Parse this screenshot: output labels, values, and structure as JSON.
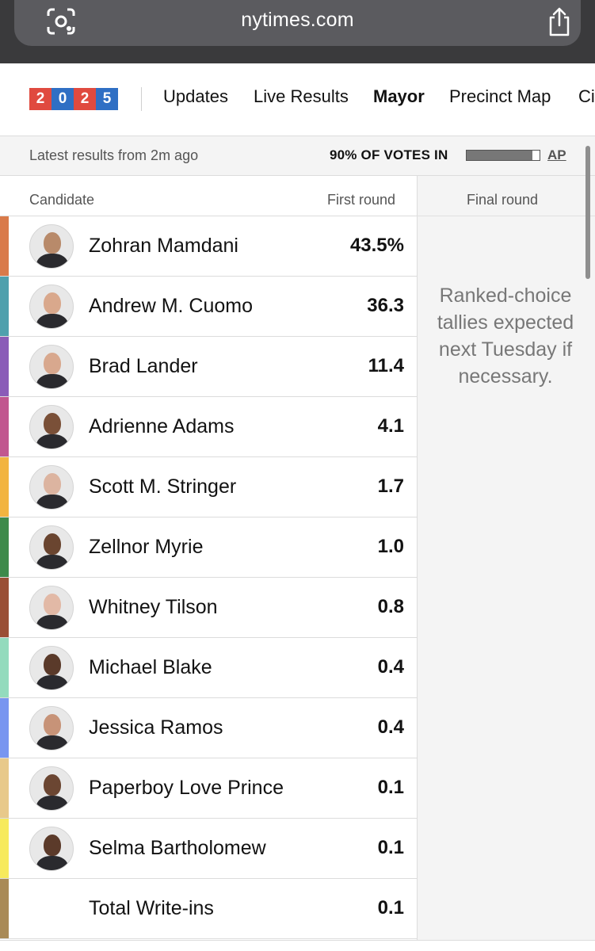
{
  "browser": {
    "url": "nytimes.com"
  },
  "nav": {
    "logo_digits": [
      "2",
      "0",
      "2",
      "5"
    ],
    "logo_colors": [
      "#e04a3f",
      "#2f6fc4",
      "#e04a3f",
      "#2f6fc4"
    ],
    "links": [
      "Updates",
      "Live Results",
      "Mayor",
      "Precinct Map",
      "Ci"
    ],
    "active": "Mayor"
  },
  "status": {
    "latest": "Latest results from 2m ago",
    "votes_in": "90% OF VOTES IN",
    "votes_fraction": 0.9,
    "source": "AP"
  },
  "table": {
    "col_candidate": "Candidate",
    "col_first": "First round",
    "col_final": "Final round",
    "final_note": "Ranked-choice tallies expected next Tuesday if necessary.",
    "rows": [
      {
        "name": "Zohran Mamdani",
        "pct": "43.5%",
        "color": "#d97a4a",
        "skin": "#b88a6a",
        "photo": true
      },
      {
        "name": "Andrew M. Cuomo",
        "pct": "36.3",
        "color": "#4fa0ad",
        "skin": "#d9a88c",
        "photo": true
      },
      {
        "name": "Brad Lander",
        "pct": "11.4",
        "color": "#8a5cb8",
        "skin": "#d8a88e",
        "photo": true
      },
      {
        "name": "Adrienne Adams",
        "pct": "4.1",
        "color": "#c1578f",
        "skin": "#7a5038",
        "photo": true
      },
      {
        "name": "Scott M. Stringer",
        "pct": "1.7",
        "color": "#f2b440",
        "skin": "#dcb4a0",
        "photo": true
      },
      {
        "name": "Zellnor Myrie",
        "pct": "1.0",
        "color": "#3d8a4a",
        "skin": "#6a4530",
        "photo": true
      },
      {
        "name": "Whitney Tilson",
        "pct": "0.8",
        "color": "#9a4f35",
        "skin": "#e2b9a6",
        "photo": true
      },
      {
        "name": "Michael Blake",
        "pct": "0.4",
        "color": "#93dbbd",
        "skin": "#5a3a2a",
        "photo": true
      },
      {
        "name": "Jessica Ramos",
        "pct": "0.4",
        "color": "#7895f0",
        "skin": "#c79378",
        "photo": true
      },
      {
        "name": "Paperboy Love Prince",
        "pct": "0.1",
        "color": "#e8c98a",
        "skin": "#6b4632",
        "photo": true
      },
      {
        "name": "Selma Bartholomew",
        "pct": "0.1",
        "color": "#f7ea5c",
        "skin": "#5b3a2a",
        "photo": true
      },
      {
        "name": "Total Write-ins",
        "pct": "0.1",
        "color": "#a98a57",
        "skin": "",
        "photo": false
      }
    ]
  }
}
